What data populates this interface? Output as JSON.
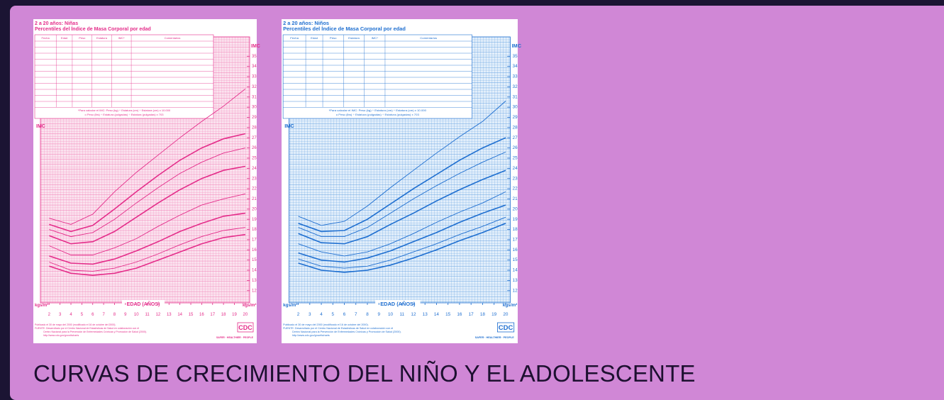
{
  "caption": "CURVAS DE CRECIMIENTO DEL NIÑO Y EL ADOLESCENTE",
  "chart_data": [
    {
      "type": "line",
      "title": "2 a 20 años: Niñas",
      "subtitle": "Percentiles del Índice de Masa Corporal por edad",
      "table_headers": [
        "Fecha",
        "Edad",
        "Peso",
        "Estatura",
        "IMC*",
        "Comentarios"
      ],
      "note": [
        "*Para calcular el IMC: Peso (kg) ÷ Estatura (cm) ÷ Estatura (cm) x 10.000",
        "o Peso (lbs) ÷ Estatura (pulgadas) ÷ Estatura (pulgadas) x 703"
      ],
      "y_label": "IMC",
      "unit": "kgs/m²",
      "x_label": "EDAD (AÑOS)",
      "color": "#e42d8a",
      "x": [
        2,
        4,
        6,
        8,
        10,
        12,
        14,
        16,
        18,
        20
      ],
      "series": [
        {
          "values": [
            14.4,
            13.7,
            13.5,
            13.7,
            14.2,
            15.0,
            15.8,
            16.6,
            17.2,
            17.5
          ]
        },
        {
          "values": [
            14.8,
            14.0,
            13.9,
            14.2,
            14.8,
            15.6,
            16.5,
            17.3,
            17.9,
            18.2
          ]
        },
        {
          "values": [
            15.4,
            14.7,
            14.6,
            15.1,
            15.9,
            16.8,
            17.8,
            18.6,
            19.3,
            19.6
          ]
        },
        {
          "values": [
            16.4,
            15.5,
            15.5,
            16.2,
            17.1,
            18.3,
            19.4,
            20.4,
            21.0,
            21.5
          ]
        },
        {
          "values": [
            17.4,
            16.6,
            16.8,
            17.8,
            19.2,
            20.6,
            21.9,
            23.0,
            23.8,
            24.2
          ]
        },
        {
          "values": [
            18.0,
            17.3,
            17.7,
            19.0,
            20.6,
            22.1,
            23.5,
            24.6,
            25.5,
            26.0
          ]
        },
        {
          "values": [
            18.5,
            17.8,
            18.4,
            20.0,
            21.7,
            23.3,
            24.8,
            26.0,
            26.9,
            27.4
          ]
        },
        {
          "values": [
            19.1,
            18.5,
            19.5,
            21.7,
            23.6,
            25.3,
            27.0,
            28.6,
            30.1,
            31.8
          ]
        }
      ],
      "xlim": [
        1.2,
        20.4
      ],
      "ylim": [
        10.8,
        36.9
      ],
      "xticks": [
        2,
        3,
        4,
        5,
        6,
        7,
        8,
        9,
        10,
        11,
        12,
        13,
        14,
        15,
        16,
        17,
        18,
        19,
        20
      ],
      "yticks": [
        12,
        13,
        14,
        15,
        16,
        17,
        18,
        19,
        20,
        21,
        22,
        23,
        24,
        25,
        26,
        27,
        28,
        29,
        30,
        31,
        32,
        33,
        34,
        35
      ],
      "footer": [
        "Publicado el 30 de mayo del 2000 (modificado el 16 de octubre del 2000).",
        "FUENTE: Desarrollado por el Centro Nacional de Estadísticas de Salud en colaboración con el",
        "Centro Nacional para la Prevención de Enfermedades Crónicas y Promoción de Salud (2000).",
        "http://www.cdc.gov/growthcharts"
      ],
      "logo": "CDC",
      "slogan": "SAFER · HEALTHIER · PEOPLE"
    },
    {
      "type": "line",
      "title": "2 a 20 años: Niños",
      "subtitle": "Percentiles del Índice de Masa Corporal por edad",
      "table_headers": [
        "Fecha",
        "Edad",
        "Peso",
        "Estatura",
        "IMC*",
        "Comentarios"
      ],
      "note": [
        "*Para calcular el IMC: Peso (kg) ÷ Estatura (cm) ÷ Estatura (cm) x 10.000",
        "o Peso (lbs) ÷ Estatura (pulgadas) ÷ Estatura (pulgadas) x 703"
      ],
      "y_label": "IMC",
      "unit": "kgs/m²",
      "x_label": "EDAD (AÑOS)",
      "color": "#1f6fd0",
      "x": [
        2,
        4,
        6,
        8,
        10,
        12,
        14,
        16,
        18,
        20
      ],
      "series": [
        {
          "values": [
            14.7,
            14.0,
            13.8,
            14.0,
            14.5,
            15.2,
            16.0,
            16.9,
            17.7,
            18.6
          ]
        },
        {
          "values": [
            15.1,
            14.4,
            14.2,
            14.4,
            15.0,
            15.8,
            16.6,
            17.5,
            18.3,
            19.2
          ]
        },
        {
          "values": [
            15.7,
            15.0,
            14.8,
            15.2,
            15.9,
            16.8,
            17.7,
            18.7,
            19.6,
            20.4
          ]
        },
        {
          "values": [
            16.6,
            15.8,
            15.4,
            15.8,
            16.6,
            17.6,
            18.7,
            19.7,
            20.6,
            21.7
          ]
        },
        {
          "values": [
            17.6,
            16.7,
            16.6,
            17.3,
            18.5,
            19.6,
            20.8,
            21.9,
            22.9,
            23.8
          ]
        },
        {
          "values": [
            18.2,
            17.3,
            17.3,
            18.2,
            19.6,
            21.0,
            22.3,
            23.5,
            24.6,
            25.6
          ]
        },
        {
          "values": [
            18.6,
            17.8,
            17.9,
            19.0,
            20.5,
            22.0,
            23.4,
            24.8,
            26.0,
            27.0
          ]
        },
        {
          "values": [
            19.3,
            18.4,
            18.8,
            20.3,
            22.1,
            23.8,
            25.5,
            27.1,
            28.6,
            30.6
          ]
        }
      ],
      "xlim": [
        1.2,
        20.4
      ],
      "ylim": [
        10.8,
        36.9
      ],
      "xticks": [
        2,
        3,
        4,
        5,
        6,
        7,
        8,
        9,
        10,
        11,
        12,
        13,
        14,
        15,
        16,
        17,
        18,
        19,
        20
      ],
      "yticks": [
        12,
        13,
        14,
        15,
        16,
        17,
        18,
        19,
        20,
        21,
        22,
        23,
        24,
        25,
        26,
        27,
        28,
        29,
        30,
        31,
        32,
        33,
        34,
        35
      ],
      "footer": [
        "Publicado el 30 de mayo del 2000 (modificado el 16 de octubre del 2000).",
        "FUENTE: Desarrollado por el Centro Nacional de Estadísticas de Salud en colaboración con el",
        "Centro Nacional para la Prevención de Enfermedades Crónicas y Promoción de Salud (2000).",
        "http://www.cdc.gov/growthcharts"
      ],
      "logo": "CDC",
      "slogan": "SAFER · HEALTHIER · PEOPLE"
    }
  ]
}
